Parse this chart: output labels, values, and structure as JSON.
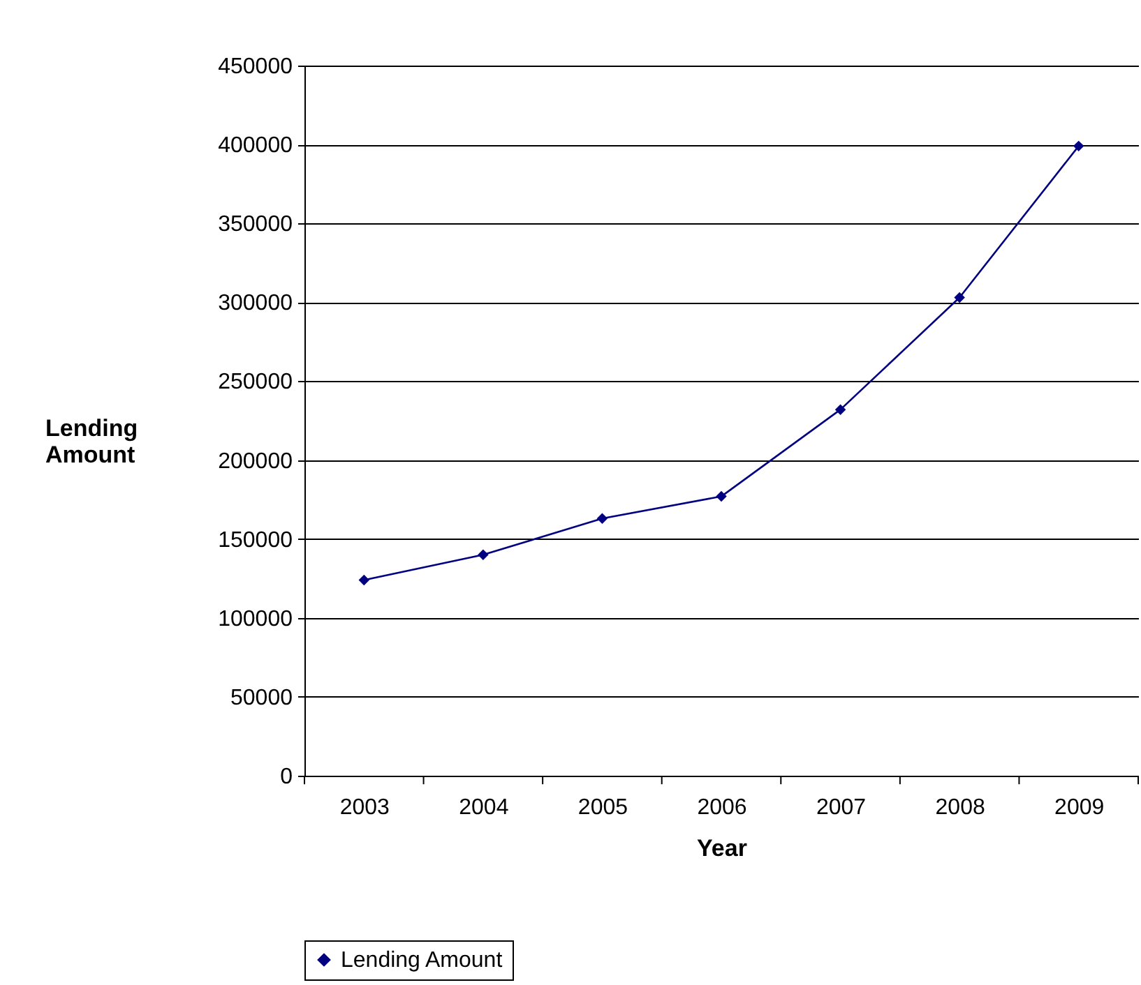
{
  "chart_data": {
    "type": "line",
    "xlabel": "Year",
    "ylabel": "Lending Amount",
    "categories": [
      "2003",
      "2004",
      "2005",
      "2006",
      "2007",
      "2008",
      "2009"
    ],
    "series": [
      {
        "name": "Lending Amount",
        "color": "#000080",
        "values": [
          124000,
          140000,
          163000,
          177000,
          232000,
          303000,
          399000
        ]
      }
    ],
    "ylim": [
      0,
      450000
    ],
    "yticks": [
      0,
      50000,
      100000,
      150000,
      200000,
      250000,
      300000,
      350000,
      400000,
      450000
    ],
    "grid": "y",
    "legend": "bottom",
    "marker": "diamond",
    "line_style": "solid"
  }
}
